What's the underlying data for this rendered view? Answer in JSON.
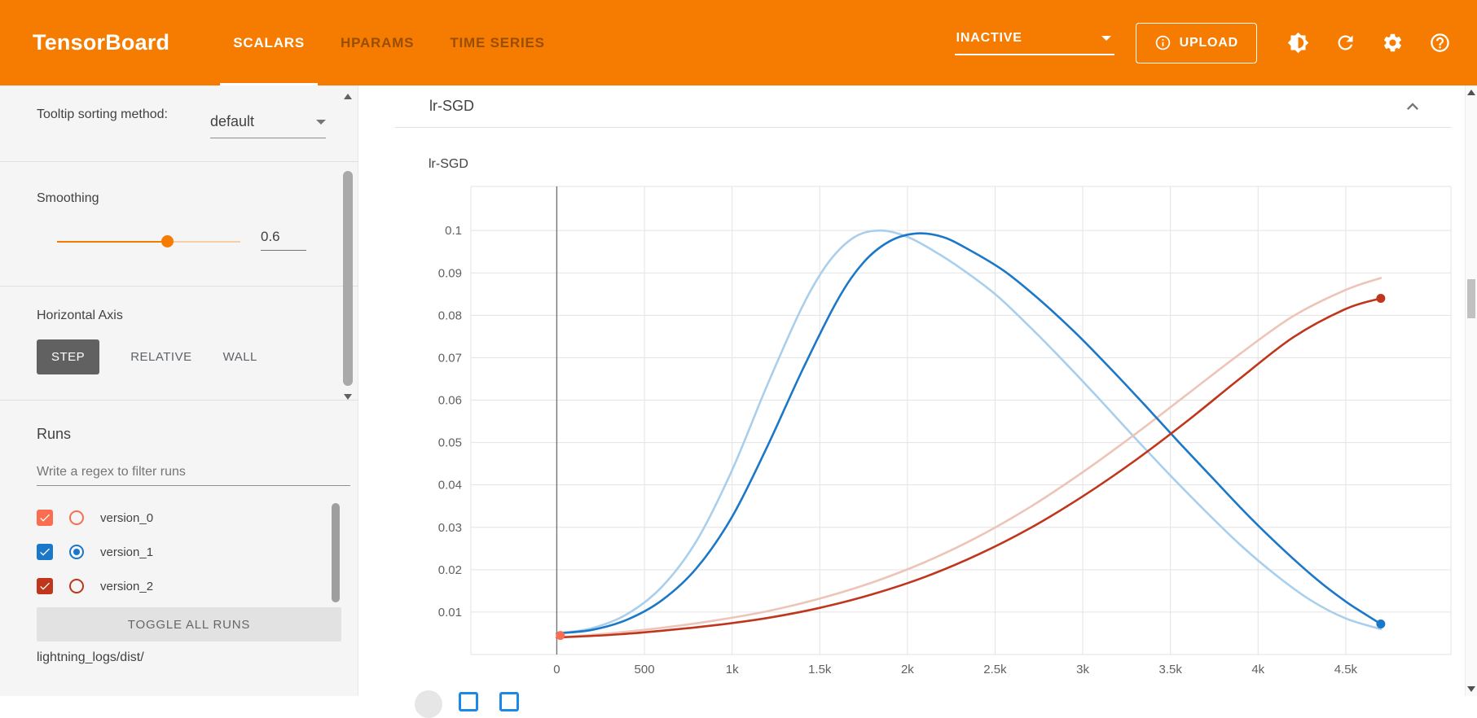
{
  "colors": {
    "header_bg": "#f57c00",
    "accent": "#f57c00"
  },
  "header": {
    "logo": "TensorBoard",
    "tabs": [
      {
        "label": "SCALARS"
      },
      {
        "label": "HPARAMS"
      },
      {
        "label": "TIME SERIES"
      }
    ],
    "active_tab": "SCALARS",
    "status_label": "INACTIVE",
    "upload_label": "UPLOAD"
  },
  "sidebar": {
    "tooltip_sorting_label": "Tooltip sorting method:",
    "tooltip_sorting_value": "default",
    "smoothing": {
      "label": "Smoothing",
      "value": 0.6
    },
    "horizontal_axis": {
      "label": "Horizontal Axis",
      "options": [
        "STEP",
        "RELATIVE",
        "WALL"
      ],
      "selected": "STEP"
    },
    "runs": {
      "heading": "Runs",
      "filter_placeholder": "Write a regex to filter runs",
      "items": [
        {
          "name": "version_0",
          "color": "#fb6d51",
          "checked": true,
          "radio_selected": false
        },
        {
          "name": "version_1",
          "color": "#1b77c8",
          "checked": true,
          "radio_selected": true
        },
        {
          "name": "version_2",
          "color": "#c0361c",
          "checked": true,
          "radio_selected": false
        }
      ],
      "toggle_all_label": "TOGGLE ALL RUNS",
      "log_dir": "lightning_logs/dist/"
    }
  },
  "main": {
    "section_title": "lr-SGD"
  },
  "chart_data": {
    "type": "line",
    "title": "lr-SGD",
    "x_ticks": [
      0,
      500,
      1000,
      1500,
      2000,
      2500,
      3000,
      3500,
      4000,
      4500
    ],
    "x_tick_labels": [
      "0",
      "500",
      "1k",
      "1.5k",
      "2k",
      "2.5k",
      "3k",
      "3.5k",
      "4k",
      "4.5k"
    ],
    "y_ticks": [
      0.01,
      0.02,
      0.03,
      0.04,
      0.05,
      0.06,
      0.07,
      0.08,
      0.09,
      0.1
    ],
    "y_tick_labels": [
      "0.01",
      "0.02",
      "0.03",
      "0.04",
      "0.05",
      "0.06",
      "0.07",
      "0.08",
      "0.09",
      "0.1"
    ],
    "xlim": [
      -490,
      5100
    ],
    "ylim": [
      0,
      0.1104
    ],
    "grid": true,
    "legend": "none",
    "series": [
      {
        "name": "version_1-original",
        "color": "#a9cfec",
        "width": 2.6,
        "end_dot": false,
        "points": [
          [
            0,
            0.005
          ],
          [
            200,
            0.0062
          ],
          [
            400,
            0.0095
          ],
          [
            600,
            0.016
          ],
          [
            800,
            0.027
          ],
          [
            1000,
            0.0435
          ],
          [
            1200,
            0.0635
          ],
          [
            1400,
            0.082
          ],
          [
            1550,
            0.0925
          ],
          [
            1700,
            0.0985
          ],
          [
            1850,
            0.1
          ],
          [
            2000,
            0.0985
          ],
          [
            2150,
            0.0952
          ],
          [
            2300,
            0.0912
          ],
          [
            2500,
            0.085
          ],
          [
            2700,
            0.0772
          ],
          [
            2900,
            0.0688
          ],
          [
            3100,
            0.06
          ],
          [
            3300,
            0.051
          ],
          [
            3500,
            0.0422
          ],
          [
            3700,
            0.0338
          ],
          [
            3900,
            0.0258
          ],
          [
            4100,
            0.0188
          ],
          [
            4300,
            0.0128
          ],
          [
            4500,
            0.0085
          ],
          [
            4700,
            0.006
          ]
        ]
      },
      {
        "name": "version_2-original",
        "color": "#edc5b8",
        "width": 2.6,
        "end_dot": false,
        "points": [
          [
            0,
            0.004
          ],
          [
            300,
            0.005
          ],
          [
            600,
            0.0063
          ],
          [
            900,
            0.008
          ],
          [
            1200,
            0.0102
          ],
          [
            1500,
            0.0132
          ],
          [
            1800,
            0.017
          ],
          [
            2100,
            0.0218
          ],
          [
            2400,
            0.0277
          ],
          [
            2700,
            0.0348
          ],
          [
            3000,
            0.043
          ],
          [
            3300,
            0.052
          ],
          [
            3600,
            0.0615
          ],
          [
            3900,
            0.071
          ],
          [
            4200,
            0.0798
          ],
          [
            4500,
            0.086
          ],
          [
            4700,
            0.0888
          ]
        ]
      },
      {
        "name": "version_1-smoothed",
        "color": "#1b77c8",
        "width": 2.6,
        "end_dot": true,
        "points": [
          [
            0,
            0.005
          ],
          [
            200,
            0.0058
          ],
          [
            400,
            0.0082
          ],
          [
            600,
            0.0128
          ],
          [
            800,
            0.0205
          ],
          [
            1000,
            0.0325
          ],
          [
            1200,
            0.049
          ],
          [
            1400,
            0.067
          ],
          [
            1600,
            0.0835
          ],
          [
            1750,
            0.0925
          ],
          [
            1900,
            0.0975
          ],
          [
            2050,
            0.0993
          ],
          [
            2200,
            0.0985
          ],
          [
            2350,
            0.0955
          ],
          [
            2550,
            0.0905
          ],
          [
            2750,
            0.0838
          ],
          [
            2950,
            0.0762
          ],
          [
            3150,
            0.0678
          ],
          [
            3350,
            0.059
          ],
          [
            3550,
            0.05
          ],
          [
            3750,
            0.0412
          ],
          [
            3950,
            0.0325
          ],
          [
            4150,
            0.0245
          ],
          [
            4350,
            0.0172
          ],
          [
            4500,
            0.0125
          ],
          [
            4600,
            0.0098
          ],
          [
            4700,
            0.0072
          ]
        ]
      },
      {
        "name": "version_2-smoothed",
        "color": "#c0361c",
        "width": 2.6,
        "end_dot": true,
        "points": [
          [
            0,
            0.004
          ],
          [
            300,
            0.0046
          ],
          [
            600,
            0.0056
          ],
          [
            900,
            0.0069
          ],
          [
            1200,
            0.0086
          ],
          [
            1500,
            0.011
          ],
          [
            1800,
            0.0142
          ],
          [
            2100,
            0.0183
          ],
          [
            2400,
            0.0235
          ],
          [
            2700,
            0.0298
          ],
          [
            3000,
            0.0373
          ],
          [
            3300,
            0.0458
          ],
          [
            3600,
            0.0552
          ],
          [
            3900,
            0.0652
          ],
          [
            4200,
            0.0748
          ],
          [
            4500,
            0.0815
          ],
          [
            4700,
            0.084
          ]
        ]
      },
      {
        "name": "version_0",
        "color": "#fb6d51",
        "width": 2.6,
        "end_dot": true,
        "points": [
          [
            20,
            0.0045
          ]
        ]
      }
    ]
  }
}
